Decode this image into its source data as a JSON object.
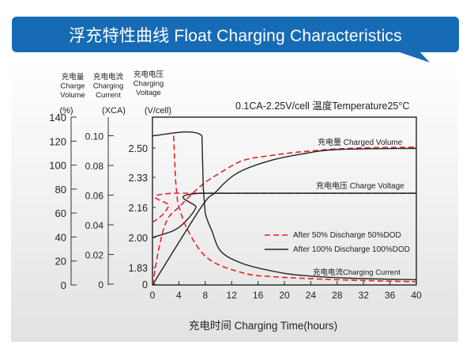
{
  "header": {
    "title": "浮充特性曲线 Float Charging Characteristics",
    "color": "#176bb5"
  },
  "chart_data": {
    "type": "line",
    "condition_note": "0.1CA-2.25V/cell  温度Temperature25°C",
    "xlabel": "充电时间 Charging Time(hours)",
    "x_ticks": [
      0,
      4,
      8,
      12,
      16,
      20,
      24,
      28,
      32,
      36,
      40
    ],
    "xlim": [
      0,
      40
    ],
    "axes": {
      "volume": {
        "title": [
          "充电量",
          "Charge",
          "Volume"
        ],
        "unit": "(%)",
        "ticks": [
          "0",
          "20",
          "40",
          "60",
          "80",
          "100",
          "120",
          "140"
        ],
        "ylim": [
          0,
          140
        ]
      },
      "current": {
        "title": [
          "充电电流",
          "Charging",
          "Current"
        ],
        "unit": "(XCA)",
        "ticks": [
          "0",
          "0.02",
          "0.04",
          "0.06",
          "0.08",
          "0.10"
        ],
        "ylim": [
          0,
          0.1
        ]
      },
      "voltage": {
        "title": [
          "充电电压",
          "Charging",
          "Voltage"
        ],
        "unit": "(V/cell)",
        "ticks": [
          "0",
          "1.83",
          "2.00",
          "2.16",
          "2.33",
          "2.50"
        ]
      }
    },
    "curve_labels": {
      "volume": "充电量 Charged Volume",
      "voltage": "充电电压 Charge Voltage",
      "current": "充电电流Charging Current"
    },
    "legend": [
      {
        "name": "After 50% Discharge 50%DOD",
        "style": "dashed",
        "color": "#e8202a"
      },
      {
        "name": "After 100%  Discharge 100%DOD",
        "style": "solid",
        "color": "#222222"
      }
    ],
    "series": [
      {
        "dod": "50%",
        "quantity": "volume",
        "points": [
          [
            0,
            0
          ],
          [
            1,
            31
          ],
          [
            2.2,
            54
          ],
          [
            4.2,
            66
          ],
          [
            7.4,
            83
          ],
          [
            10.4,
            94
          ],
          [
            13.8,
            104
          ],
          [
            18,
            108
          ],
          [
            22.4,
            111
          ],
          [
            30,
            114
          ],
          [
            40,
            115
          ]
        ]
      },
      {
        "dod": "100%",
        "quantity": "volume",
        "points": [
          [
            0,
            0
          ],
          [
            7.4,
            65
          ],
          [
            9.5,
            77
          ],
          [
            11.5,
            88
          ],
          [
            13.8,
            96
          ],
          [
            18,
            104
          ],
          [
            22.4,
            109
          ],
          [
            28,
            113
          ],
          [
            40,
            114
          ]
        ]
      },
      {
        "dod": "50%",
        "quantity": "voltage",
        "points": [
          [
            0,
            2.08
          ],
          [
            1.5,
            2.12
          ],
          [
            2.5,
            2.17
          ],
          [
            3.3,
            2.24
          ],
          [
            40,
            2.24
          ]
        ]
      },
      {
        "dod": "100%",
        "quantity": "voltage",
        "points": [
          [
            0,
            2.0
          ],
          [
            3.4,
            2.04
          ],
          [
            5.4,
            2.1
          ],
          [
            6.6,
            2.16
          ],
          [
            7.2,
            2.24
          ],
          [
            40,
            2.24
          ]
        ]
      },
      {
        "dod": "50%",
        "quantity": "current",
        "points": [
          [
            3.2,
            0.1
          ],
          [
            3.5,
            0.07
          ],
          [
            3.8,
            0.056
          ],
          [
            5.4,
            0.036
          ],
          [
            8.5,
            0.017
          ],
          [
            13.8,
            0.0075
          ],
          [
            18.4,
            0.005
          ],
          [
            28,
            0.003
          ],
          [
            40,
            0.0016
          ]
        ]
      },
      {
        "dod": "100%",
        "quantity": "current",
        "points": [
          [
            0,
            0.1
          ],
          [
            7.5,
            0.1
          ],
          [
            7.7,
            0.065
          ],
          [
            8,
            0.048
          ],
          [
            9,
            0.036
          ],
          [
            10.4,
            0.022
          ],
          [
            13.6,
            0.014
          ],
          [
            18,
            0.009
          ],
          [
            22.4,
            0.006
          ],
          [
            30,
            0.004
          ],
          [
            40,
            0.003
          ]
        ]
      }
    ]
  }
}
